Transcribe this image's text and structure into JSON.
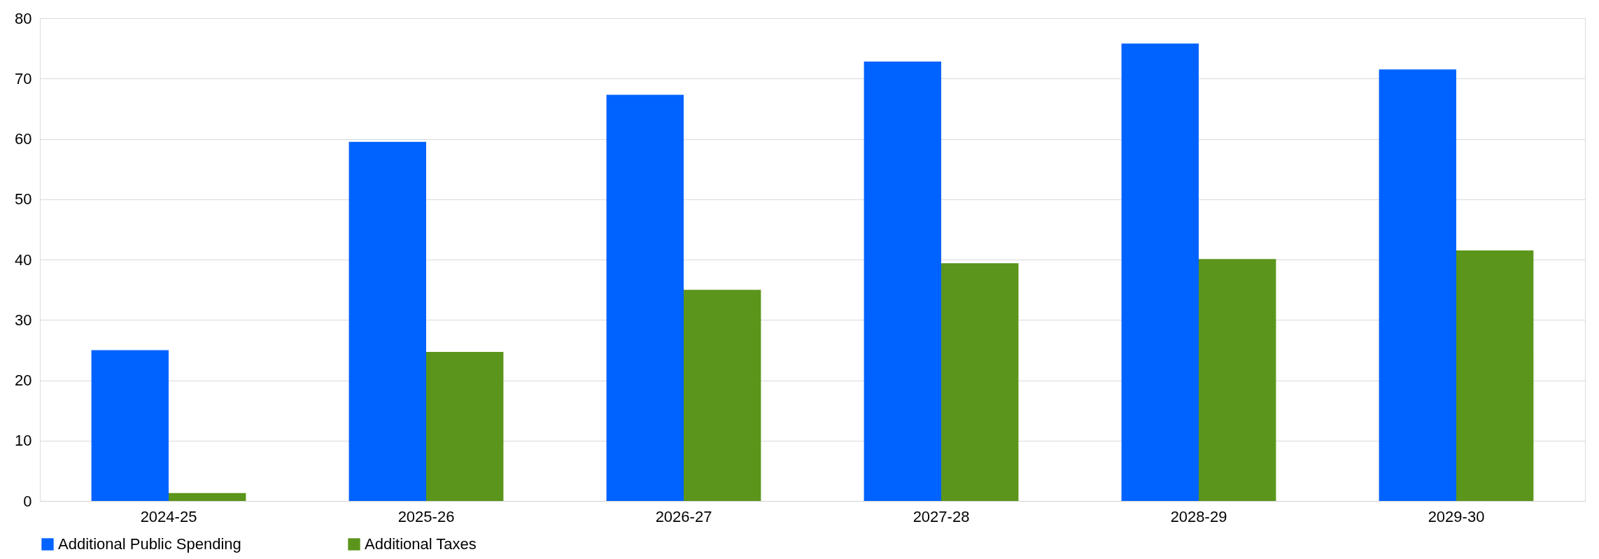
{
  "chart_data": {
    "type": "bar",
    "categories": [
      "2024-25",
      "2025-26",
      "2026-27",
      "2027-28",
      "2028-29",
      "2029-30"
    ],
    "series": [
      {
        "name": "Additional Public Spending",
        "color": "#0062ff",
        "values": [
          25.0,
          59.5,
          67.3,
          72.8,
          75.8,
          71.5
        ]
      },
      {
        "name": "Additional Taxes",
        "color": "#5b951b",
        "values": [
          1.3,
          24.7,
          35.0,
          39.4,
          40.1,
          41.5
        ]
      }
    ],
    "ylim": [
      0,
      80
    ],
    "yticks": [
      0,
      10,
      20,
      30,
      40,
      50,
      60,
      70,
      80
    ],
    "grid": "y",
    "legend": "bottom"
  }
}
